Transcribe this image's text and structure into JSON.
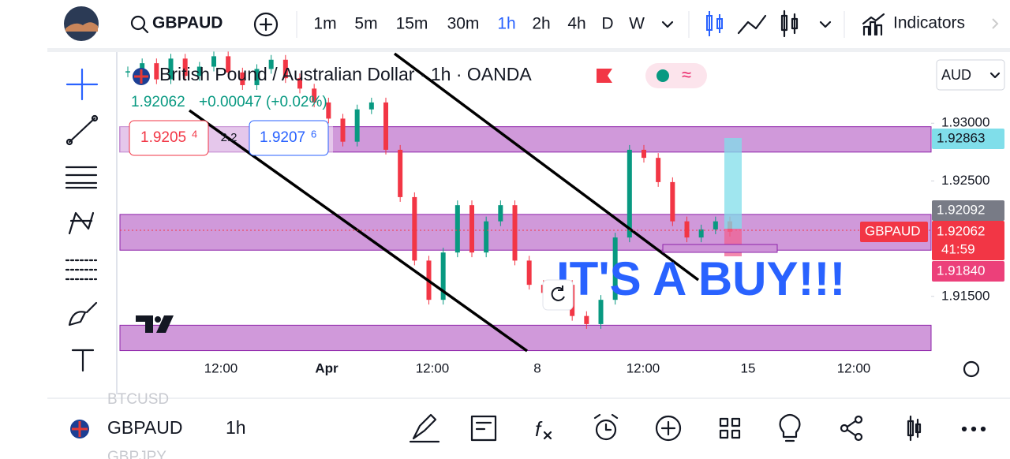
{
  "top_bar": {
    "symbol": "GBPAUD",
    "intervals": [
      "1m",
      "5m",
      "15m",
      "30m",
      "1h",
      "2h",
      "4h",
      "D",
      "W"
    ],
    "active_interval": 4,
    "indicators": "Indicators"
  },
  "legend": {
    "title": "British Pound / Australian Dollar · 1h · OANDA",
    "last": "1.92062",
    "change": "+0.00047 (+0.02%)",
    "sell": "1.9205",
    "sell_pip": "4",
    "spread": "2.2",
    "buy": "1.9207",
    "buy_pip": "6"
  },
  "currency": "AUD",
  "chart": {
    "ylim": [
      1.91027,
      1.93603
    ],
    "yticks": [
      {
        "value": 1.93,
        "label": "1.93000"
      },
      {
        "value": 1.925,
        "label": "1.92500"
      },
      {
        "value": 1.915,
        "label": "1.91500"
      }
    ],
    "candles": [
      1.9345,
      1.9352,
      1.9338,
      1.9356,
      1.9341,
      1.9349,
      1.9358,
      1.9344,
      1.9333,
      1.9347,
      1.9355,
      1.9339,
      1.933,
      1.9318,
      1.9304,
      1.9284,
      1.9312,
      1.9318,
      1.9277,
      1.9236,
      1.9181,
      1.9147,
      1.9188,
      1.9229,
      1.9188,
      1.9215,
      1.9229,
      1.9181,
      1.916,
      1.9153,
      1.916,
      1.9133,
      1.9126,
      1.9147,
      1.9201,
      1.9277,
      1.927,
      1.9249,
      1.9215,
      1.9201,
      1.9208,
      1.9215,
      1.9206
    ],
    "zones": [
      {
        "top": 1.9297,
        "bottom": 1.9275
      },
      {
        "top": 1.9221,
        "bottom": 1.919
      },
      {
        "top": 1.9125,
        "bottom": 1.9103
      }
    ],
    "annotation": "IT'S A BUY!!!"
  },
  "price_labels": {
    "target": "1.92863",
    "high": "1.92092",
    "symbol": "GBPAUD",
    "last": "1.92062",
    "countdown": "41:59",
    "stop": "1.91840"
  },
  "time_axis": [
    "12:00",
    "Apr",
    "12:00",
    "8",
    "12:00",
    "15",
    "12:00"
  ],
  "bottom_bar": {
    "prev": "BTCUSD",
    "symbol": "GBPAUD",
    "interval": "1h",
    "next": "GBPJPY"
  }
}
